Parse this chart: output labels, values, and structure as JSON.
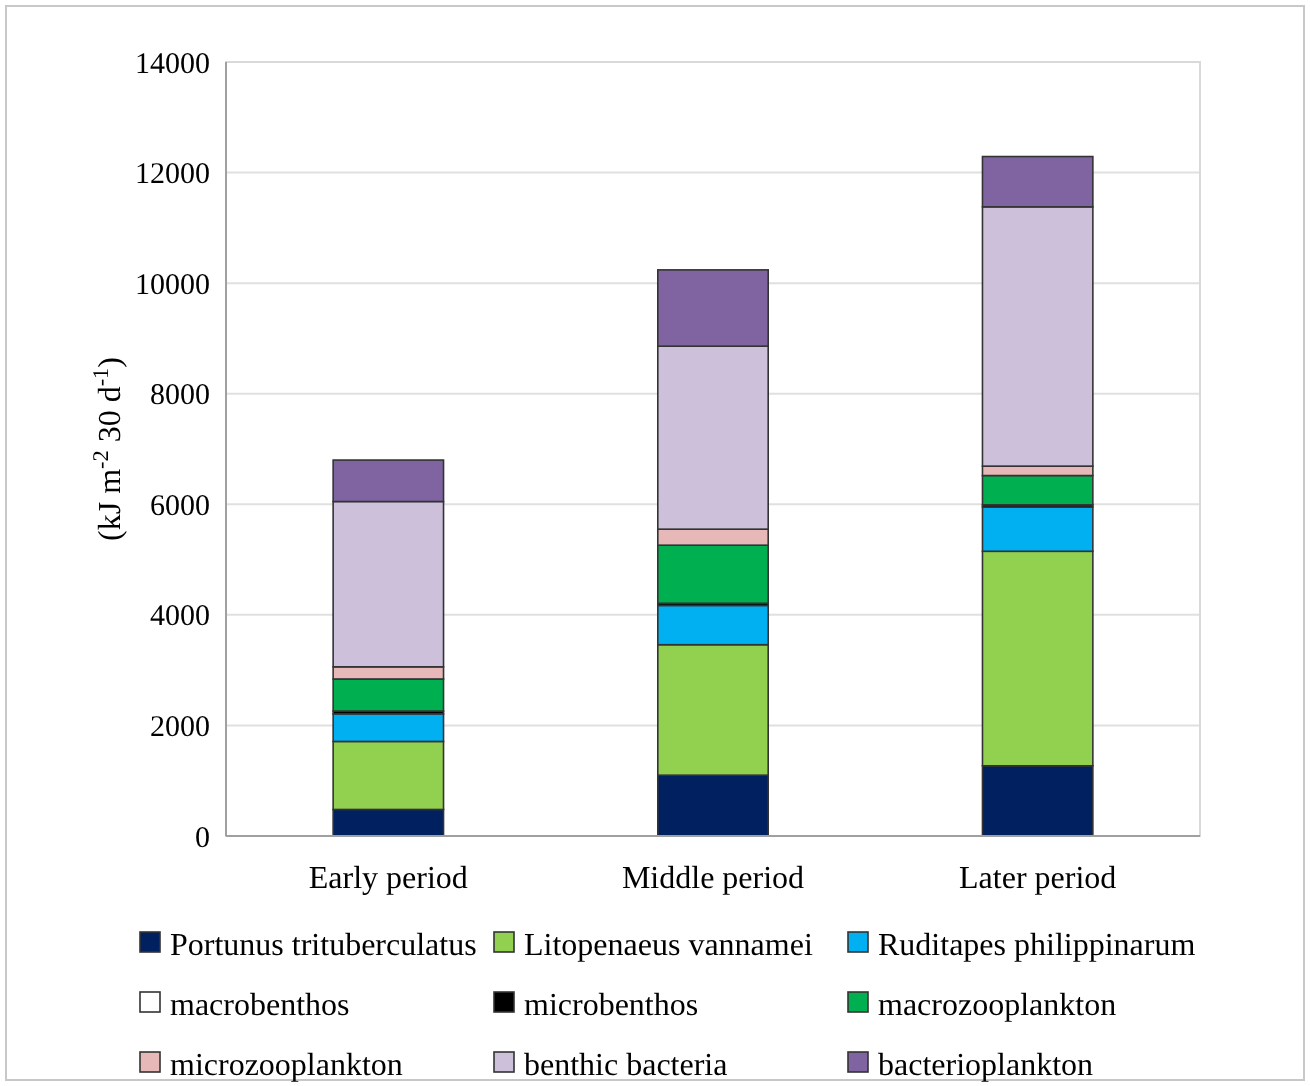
{
  "chart_data": {
    "type": "bar",
    "stacked": true,
    "ylabel": "(kJ m$^{-2}$ 30 d$^{-1}$)",
    "categories": [
      "Early period",
      "Middle period",
      "Later period"
    ],
    "ylim": [
      0,
      14000
    ],
    "yticks": [
      0,
      2000,
      4000,
      6000,
      8000,
      10000,
      12000,
      14000
    ],
    "grid": "y",
    "legend": "bottom",
    "series": [
      {
        "name": "Portunus trituberculatus",
        "color": "#002060",
        "values": [
          480,
          1100,
          1270
        ]
      },
      {
        "name": "Litopenaeus vannamei",
        "color": "#92d050",
        "values": [
          1230,
          2360,
          3880
        ]
      },
      {
        "name": "Ruditapes philippinarum",
        "color": "#00b0f0",
        "values": [
          500,
          710,
          800
        ]
      },
      {
        "name": "macrobenthos",
        "color": "#ffffff",
        "values": [
          null,
          null,
          null
        ]
      },
      {
        "name": "microbenthos",
        "color": "#000000",
        "values": [
          50,
          40,
          40
        ]
      },
      {
        "name": "macrozooplankton",
        "color": "#00b050",
        "values": [
          580,
          1050,
          530
        ]
      },
      {
        "name": "microzooplankton",
        "color": "#e6b9b8",
        "values": [
          220,
          290,
          170
        ]
      },
      {
        "name": "benthic bacteria",
        "color": "#ccc0da",
        "values": [
          2990,
          3310,
          4690
        ]
      },
      {
        "name": "bacterioplankton",
        "color": "#8064a2",
        "values": [
          750,
          1380,
          910
        ]
      }
    ]
  }
}
